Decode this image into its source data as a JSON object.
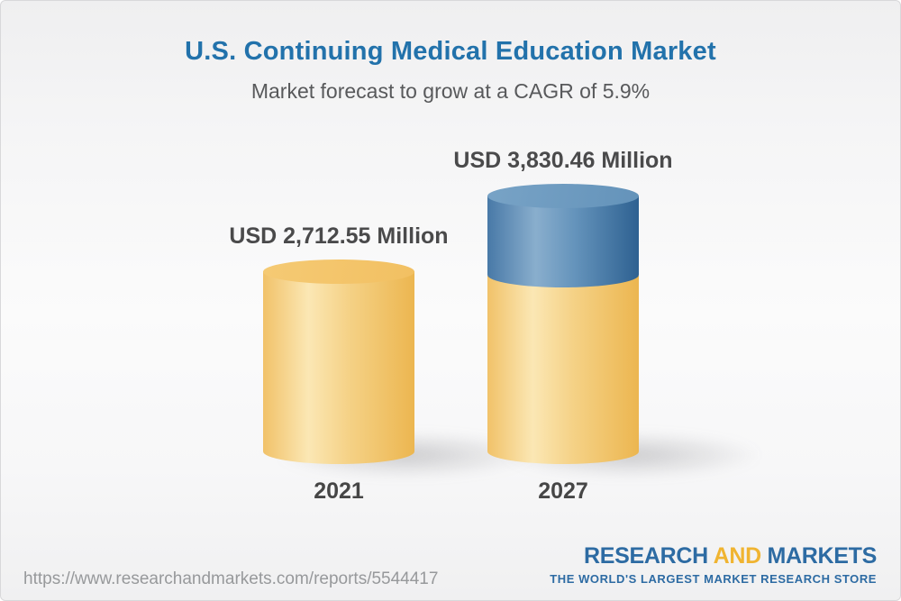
{
  "header": {
    "title": "U.S. Continuing Medical Education Market",
    "subtitle": "Market forecast to grow at a CAGR of 5.9%"
  },
  "chart_data": {
    "type": "bar",
    "variant": "3d-cylinder-stacked",
    "title": "U.S. Continuing Medical Education Market",
    "subtitle": "Market forecast to grow at a CAGR of 5.9%",
    "cagr": "5.9%",
    "unit": "USD Million",
    "categories": [
      "2021",
      "2027"
    ],
    "values": [
      2712.55,
      3830.46
    ],
    "value_labels": [
      "USD 2,712.55 Million",
      "USD 3,830.46 Million"
    ],
    "series": [
      {
        "name": "base-2021-value",
        "values": [
          2712.55,
          2712.55
        ],
        "color": "#f2c36a"
      },
      {
        "name": "growth-to-2027",
        "values": [
          0,
          1117.91
        ],
        "color": "#5787b2"
      }
    ],
    "axes": "none",
    "grid": false,
    "legend": "none"
  },
  "bars": [
    {
      "year": "2021",
      "value_label": "USD 2,712.55 Million"
    },
    {
      "year": "2027",
      "value_label": "USD 3,830.46 Million"
    }
  ],
  "colors": {
    "title_blue": "#2272ab",
    "subtitle_gray": "#58595b",
    "label_dark_gray": "#4a4a4b",
    "cylinder_gold": "#f2c36a",
    "cylinder_gold_highlight": "#fbe7b4",
    "cylinder_blue": "#5787b2",
    "cylinder_blue_dark": "#2e6191",
    "brand_blue": "#2d6ba3",
    "brand_gold": "#f0b431",
    "url_gray": "#97999b",
    "background_top": "#efeff0",
    "background_middle": "#fbfbfb"
  },
  "footer": {
    "url": "https://www.researchandmarkets.com/reports/5544417",
    "logo": {
      "word1": "RESEARCH",
      "word2": "AND",
      "word3": "MARKETS",
      "tagline": "THE WORLD'S LARGEST MARKET RESEARCH STORE"
    }
  }
}
